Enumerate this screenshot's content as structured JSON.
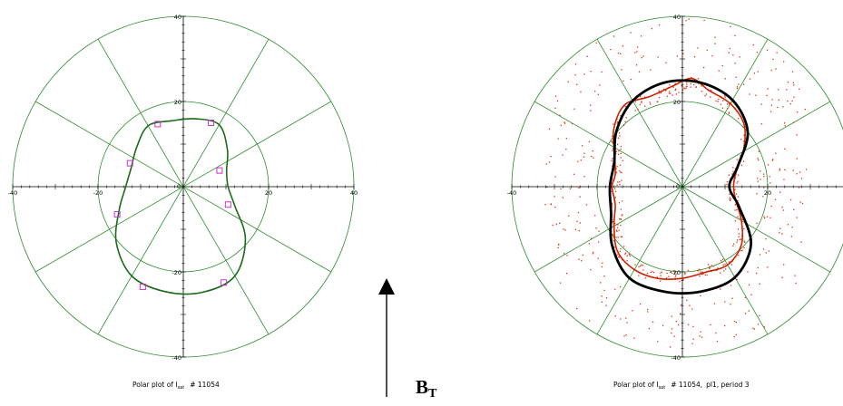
{
  "chart_data": [
    {
      "type": "scatter",
      "polar": true,
      "caption": {
        "prefix": "Polar plot of I",
        "sub": "sat",
        "shot": "# 11054",
        "rest": ""
      },
      "rlim": [
        0,
        40
      ],
      "ring_ticks": [
        {
          "label": "40",
          "r": 40,
          "side": "right"
        },
        {
          "label": "40",
          "r": 40,
          "side": "left"
        },
        {
          "label": "20",
          "r": 20,
          "side": "right"
        },
        {
          "label": "20",
          "r": 20,
          "side": "left"
        },
        {
          "label": "20",
          "r": 20,
          "side": "top"
        },
        {
          "label": "20",
          "r": 20,
          "side": "bottom"
        },
        {
          "label": "40",
          "r": 40,
          "side": "top"
        },
        {
          "label": "40",
          "r": 40,
          "side": "bottom"
        },
        {
          "label": "0",
          "r": 0,
          "side": "center"
        }
      ],
      "grid": {
        "ring_radii": [
          20,
          40
        ],
        "spoke_step_deg": 30
      },
      "fit_curve": {
        "color": "#1a6b1a",
        "points": [
          {
            "angle_deg": 0,
            "r": 10.5
          },
          {
            "angle_deg": 20,
            "r": 10.8
          },
          {
            "angle_deg": 40,
            "r": 13.5
          },
          {
            "angle_deg": 60,
            "r": 16.8
          },
          {
            "angle_deg": 80,
            "r": 16.2
          },
          {
            "angle_deg": 100,
            "r": 15.7
          },
          {
            "angle_deg": 120,
            "r": 16.5
          },
          {
            "angle_deg": 140,
            "r": 14.3
          },
          {
            "angle_deg": 160,
            "r": 13.0
          },
          {
            "angle_deg": 180,
            "r": 13.5
          },
          {
            "angle_deg": 200,
            "r": 16.0
          },
          {
            "angle_deg": 220,
            "r": 20.5
          },
          {
            "angle_deg": 240,
            "r": 24.2
          },
          {
            "angle_deg": 260,
            "r": 25.0
          },
          {
            "angle_deg": 280,
            "r": 25.2
          },
          {
            "angle_deg": 300,
            "r": 24.2
          },
          {
            "angle_deg": 320,
            "r": 19.0
          },
          {
            "angle_deg": 340,
            "r": 12.8
          }
        ]
      },
      "markers": {
        "color": "#cc33cc",
        "points": [
          {
            "x": 6.5,
            "y": 15
          },
          {
            "x": -6,
            "y": 14.7
          },
          {
            "x": -12.5,
            "y": 5.5
          },
          {
            "x": 8.5,
            "y": 3.8
          },
          {
            "x": 10.5,
            "y": -4.2
          },
          {
            "x": -15.5,
            "y": -6.5
          },
          {
            "x": -9.5,
            "y": -23.5
          },
          {
            "x": 9.5,
            "y": -22.5
          }
        ]
      }
    },
    {
      "type": "scatter",
      "polar": true,
      "caption": {
        "prefix": "Polar plot of I",
        "sub": "sat",
        "shot": "# 11054,",
        "rest": "pl1, period 3"
      },
      "rlim": [
        0,
        40
      ],
      "ring_ticks": [
        {
          "label": "40",
          "r": 40,
          "side": "left"
        },
        {
          "label": "20",
          "r": 20,
          "side": "right"
        },
        {
          "label": "20",
          "r": 20,
          "side": "top"
        },
        {
          "label": "20",
          "r": 20,
          "side": "bottom"
        },
        {
          "label": "40",
          "r": 40,
          "side": "top"
        },
        {
          "label": "40",
          "r": 40,
          "side": "bottom"
        },
        {
          "label": "0",
          "r": 0,
          "side": "center"
        }
      ],
      "grid": {
        "ring_radii": [
          20,
          40
        ],
        "spoke_step_deg": 30
      },
      "fit_curve": {
        "color": "#000000",
        "points": [
          {
            "angle_deg": 0,
            "r": 11.0
          },
          {
            "angle_deg": 20,
            "r": 13.8
          },
          {
            "angle_deg": 40,
            "r": 20.0
          },
          {
            "angle_deg": 60,
            "r": 23.5
          },
          {
            "angle_deg": 80,
            "r": 24.8
          },
          {
            "angle_deg": 100,
            "r": 24.8
          },
          {
            "angle_deg": 120,
            "r": 23.3
          },
          {
            "angle_deg": 140,
            "r": 20.2
          },
          {
            "angle_deg": 160,
            "r": 17.0
          },
          {
            "angle_deg": 180,
            "r": 17.0
          },
          {
            "angle_deg": 200,
            "r": 17.8
          },
          {
            "angle_deg": 220,
            "r": 21.5
          },
          {
            "angle_deg": 240,
            "r": 24.8
          },
          {
            "angle_deg": 260,
            "r": 25.0
          },
          {
            "angle_deg": 280,
            "r": 25.0
          },
          {
            "angle_deg": 300,
            "r": 24.6
          },
          {
            "angle_deg": 320,
            "r": 21.0
          },
          {
            "angle_deg": 340,
            "r": 14.2
          }
        ]
      },
      "data_trace": {
        "color": "#cc2200",
        "points": [
          {
            "angle_deg": 0,
            "r": 12.0
          },
          {
            "angle_deg": 15,
            "r": 13.0
          },
          {
            "angle_deg": 30,
            "r": 16.5
          },
          {
            "angle_deg": 45,
            "r": 20.5
          },
          {
            "angle_deg": 60,
            "r": 22.5
          },
          {
            "angle_deg": 75,
            "r": 23.5
          },
          {
            "angle_deg": 85,
            "r": 25.5
          },
          {
            "angle_deg": 95,
            "r": 23.8
          },
          {
            "angle_deg": 110,
            "r": 22.5
          },
          {
            "angle_deg": 125,
            "r": 23.5
          },
          {
            "angle_deg": 140,
            "r": 21.0
          },
          {
            "angle_deg": 155,
            "r": 17.5
          },
          {
            "angle_deg": 170,
            "r": 16.0
          },
          {
            "angle_deg": 180,
            "r": 16.5
          },
          {
            "angle_deg": 195,
            "r": 16.3
          },
          {
            "angle_deg": 210,
            "r": 18.5
          },
          {
            "angle_deg": 225,
            "r": 21.5
          },
          {
            "angle_deg": 240,
            "r": 22.5
          },
          {
            "angle_deg": 255,
            "r": 22.3
          },
          {
            "angle_deg": 270,
            "r": 21.5
          },
          {
            "angle_deg": 285,
            "r": 20.8
          },
          {
            "angle_deg": 300,
            "r": 21.2
          },
          {
            "angle_deg": 315,
            "r": 19.5
          },
          {
            "angle_deg": 330,
            "r": 16.0
          },
          {
            "angle_deg": 345,
            "r": 13.0
          }
        ]
      },
      "scatter_cloud": {
        "color": "#dd3311",
        "description_free": true,
        "count": 650,
        "seed": 11054
      }
    }
  ],
  "field_arrow": {
    "label_main": "B",
    "label_sub": "T",
    "direction": "up"
  },
  "colors": {
    "grid": "#2e8b2e",
    "axes": "#000000"
  }
}
